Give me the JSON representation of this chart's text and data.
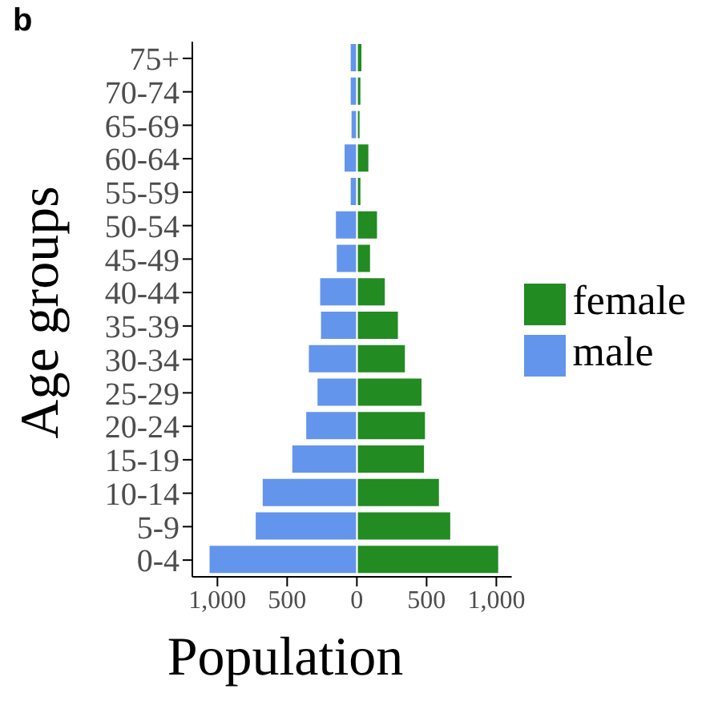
{
  "chart_data": {
    "type": "bar",
    "title": "b",
    "orientation": "horizontal",
    "stacked": true,
    "xlabel": "Population",
    "ylabel": "Age groups",
    "categories": [
      "75+",
      "70-74",
      "65-69",
      "60-64",
      "55-59",
      "50-54",
      "45-49",
      "40-44",
      "35-39",
      "30-34",
      "25-29",
      "20-24",
      "15-19",
      "10-14",
      "5-9",
      "0-4"
    ],
    "series": [
      {
        "name": "female",
        "color": "#228b22",
        "values": [
          38,
          31,
          25,
          88,
          31,
          150,
          100,
          206,
          300,
          350,
          469,
          494,
          487,
          594,
          675,
          1019
        ]
      },
      {
        "name": "male",
        "color": "#6495ed",
        "values": [
          -50,
          -50,
          -44,
          -94,
          -50,
          -156,
          -150,
          -269,
          -263,
          -350,
          -288,
          -369,
          -469,
          -681,
          -731,
          -1062
        ]
      }
    ],
    "xlim": [
      -1180,
      1110
    ],
    "xticks": [
      {
        "value": -1000,
        "label": "1,000"
      },
      {
        "value": -500,
        "label": "500"
      },
      0,
      500,
      {
        "value": 1000,
        "label": "1,000"
      }
    ],
    "grid": false,
    "legend": "right"
  }
}
